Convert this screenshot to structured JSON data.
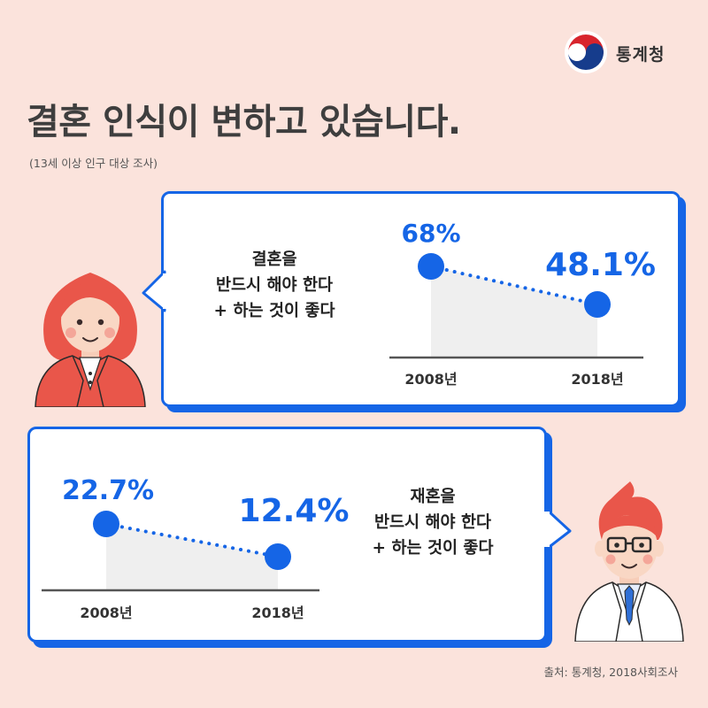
{
  "org": {
    "name": "통계청"
  },
  "title": "결혼 인식이 변하고 있습니다.",
  "subtitle": "(13세 이상 인구 대상 조사)",
  "source": "출처: 통계청, 2018사회조사",
  "colors": {
    "accent": "#1565e6",
    "background": "#fbe3dc",
    "area": "#efefef"
  },
  "icons": {
    "logo": "taegeuk-logo-icon",
    "woman": "woman-avatar-icon",
    "man": "man-avatar-icon"
  },
  "chart_data": [
    {
      "type": "line",
      "title": "",
      "label_lines": [
        "결혼을",
        "반드시 해야 한다",
        "+ 하는 것이 좋다"
      ],
      "categories": [
        "2008년",
        "2018년"
      ],
      "series": [
        {
          "values": [
            68,
            48.1
          ]
        }
      ],
      "data_labels": [
        "68%",
        "48.1%"
      ],
      "unit": "%",
      "grid": false
    },
    {
      "type": "line",
      "title": "",
      "label_lines": [
        "재혼을",
        "반드시 해야 한다",
        "+ 하는 것이 좋다"
      ],
      "categories": [
        "2008년",
        "2018년"
      ],
      "series": [
        {
          "values": [
            22.7,
            12.4
          ]
        }
      ],
      "data_labels": [
        "22.7%",
        "12.4%"
      ],
      "unit": "%",
      "grid": false
    }
  ]
}
